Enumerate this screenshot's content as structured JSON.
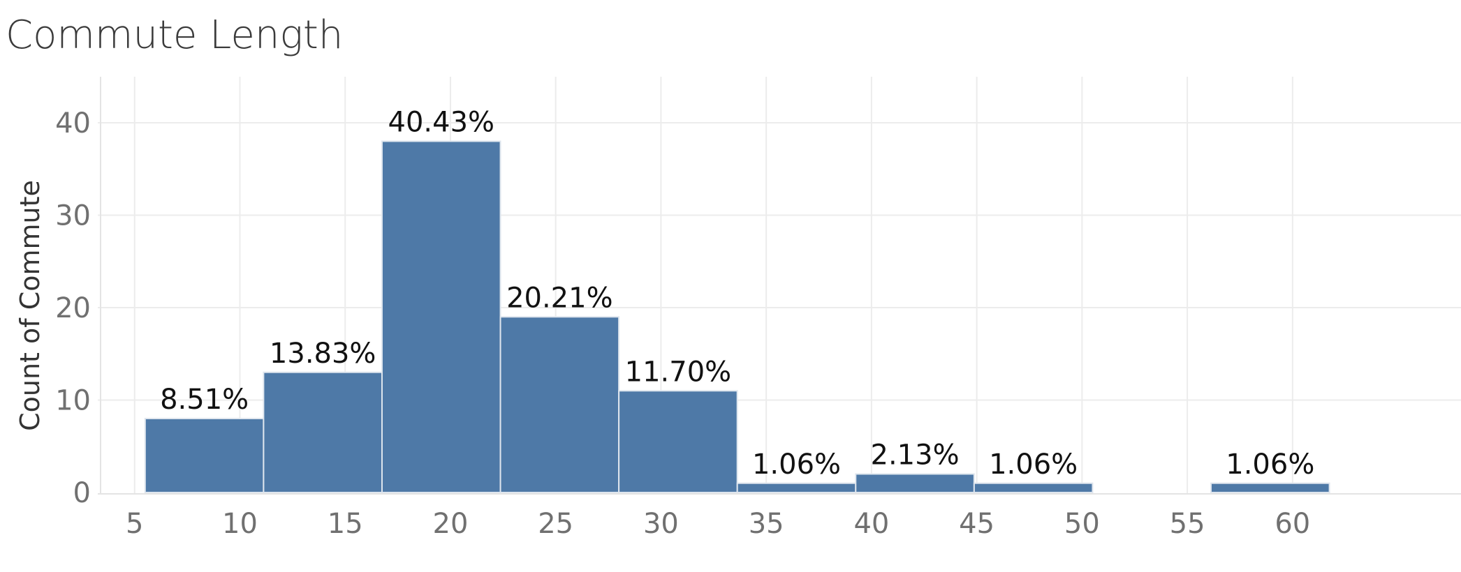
{
  "chart_data": {
    "type": "bar",
    "title": "Commute Length",
    "xlabel": "",
    "ylabel": "Count of Commute",
    "bin_width": 5.625,
    "x_start": 5.5,
    "xlim": [
      3.25,
      68
    ],
    "ylim": [
      -2,
      45
    ],
    "xticks": [
      5,
      10,
      15,
      20,
      25,
      30,
      35,
      40,
      45,
      50,
      55,
      60
    ],
    "yticks": [
      0,
      10,
      20,
      30,
      40
    ],
    "bins": [
      {
        "values": 8,
        "label": "8.51%"
      },
      {
        "values": 13,
        "label": "13.83%"
      },
      {
        "values": 38,
        "label": "40.43%"
      },
      {
        "values": 19,
        "label": "20.21%"
      },
      {
        "values": 11,
        "label": "11.70%"
      },
      {
        "values": 1,
        "label": "1.06%"
      },
      {
        "values": 2,
        "label": "2.13%"
      },
      {
        "values": 1,
        "label": "1.06%"
      },
      {
        "values": 0,
        "label": ""
      },
      {
        "values": 1,
        "label": "1.06%"
      }
    ],
    "bar_color": "#4e79a7",
    "grid": true
  }
}
